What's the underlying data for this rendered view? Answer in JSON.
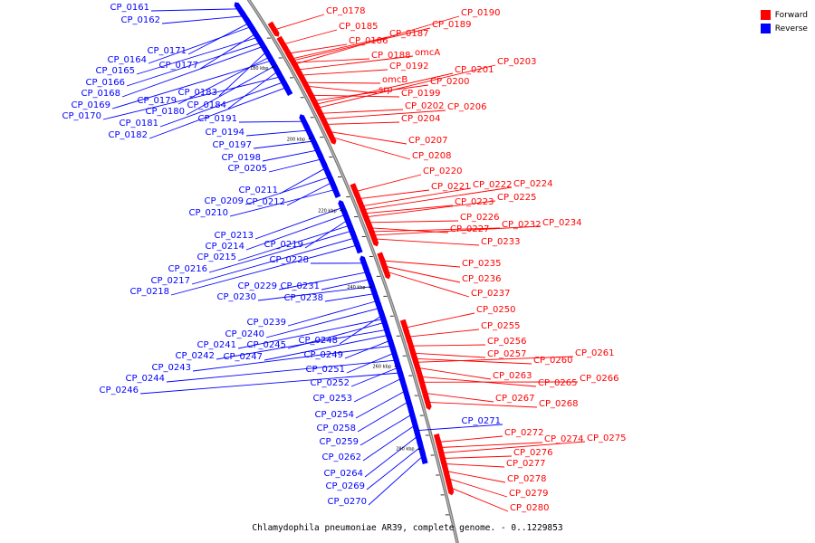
{
  "caption": "Chlamydophila pneumoniae AR39, complete genome. - 0..1229853",
  "legend": [
    {
      "label": "Forward",
      "color": "#ff0000"
    },
    {
      "label": "Reverse",
      "color": "#0000ff"
    }
  ],
  "ticks": [
    "180 kbp",
    "200 kbp",
    "220 kbp",
    "240 kbp",
    "260 kbp",
    "280 kbp"
  ],
  "forward_labels": [
    "CP_0178",
    "CP_0185",
    "CP_0186",
    "CP_0187",
    "CP_0188",
    "CP_0189",
    "CP_0190",
    "omcA",
    "CP_0192",
    "omcB",
    "srp",
    "CP_0199",
    "CP_0200",
    "CP_0201",
    "CP_0203",
    "CP_0202",
    "CP_0206",
    "CP_0204",
    "CP_0207",
    "CP_0208",
    "CP_0220",
    "CP_0221",
    "CP_0222",
    "CP_0224",
    "CP_0223",
    "CP_0225",
    "CP_0226",
    "CP_0227",
    "CP_0232",
    "CP_0234",
    "CP_0233",
    "CP_0235",
    "CP_0236",
    "CP_0237",
    "CP_0250",
    "CP_0255",
    "CP_0256",
    "CP_0257",
    "CP_0260",
    "CP_0261",
    "CP_0263",
    "CP_0265",
    "CP_0266",
    "CP_0267",
    "CP_0268",
    "CP_0272",
    "CP_0274",
    "CP_0275",
    "CP_0276",
    "CP_0277",
    "CP_0278",
    "CP_0279",
    "CP_0280"
  ],
  "reverse_labels": [
    "CP_0161",
    "CP_0162",
    "CP_0171",
    "CP_0164",
    "CP_0177",
    "CP_0165",
    "CP_0166",
    "CP_0168",
    "CP_0183",
    "CP_0179",
    "CP_0169",
    "CP_0180",
    "CP_0184",
    "CP_0170",
    "CP_0191",
    "CP_0181",
    "CP_0182",
    "CP_0194",
    "CP_0197",
    "CP_0198",
    "CP_0205",
    "CP_0211",
    "CP_0209",
    "CP_0212",
    "CP_0210",
    "CP_0213",
    "CP_0214",
    "CP_0219",
    "CP_0215",
    "CP_0228",
    "CP_0216",
    "CP_0217",
    "CP_0229",
    "CP_0231",
    "CP_0218",
    "CP_0230",
    "CP_0238",
    "CP_0239",
    "CP_0240",
    "CP_0248",
    "CP_0241",
    "CP_0245",
    "CP_0242",
    "CP_0247",
    "CP_0249",
    "CP_0243",
    "CP_0251",
    "CP_0244",
    "CP_0252",
    "CP_0246",
    "CP_0253",
    "CP_0254",
    "CP_0258",
    "CP_0259",
    "CP_0262",
    "CP_0264",
    "CP_0269",
    "CP_0270",
    "CP_0271"
  ]
}
